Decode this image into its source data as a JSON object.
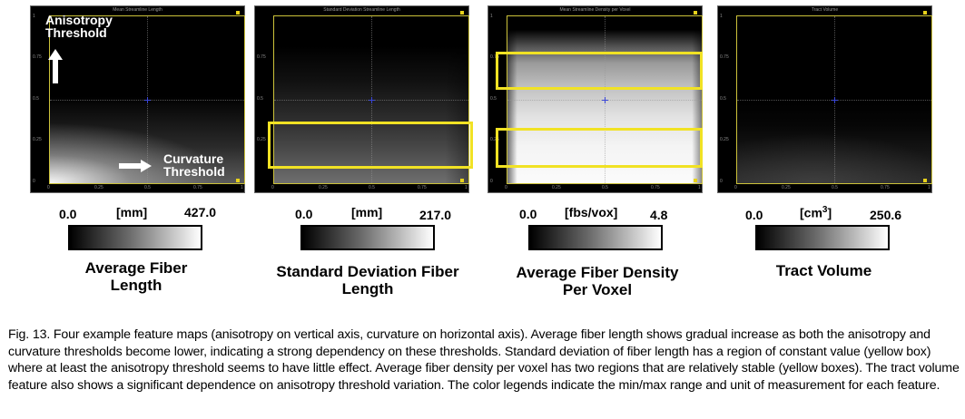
{
  "panels": [
    {
      "id": "panel-1",
      "title": "Mean Streamline Length",
      "yticks": [
        "1",
        "0.75",
        "0.5",
        "0.25",
        "0"
      ],
      "xticks": [
        "0",
        "0.25",
        "0.5",
        "0.75",
        "1"
      ],
      "annotations": {
        "anisotropy": "Anisotropy Threshold",
        "curvature": "Curvature Threshold"
      },
      "legend": {
        "min": "0.0",
        "unit": "[mm]",
        "max": "427.0"
      },
      "label": "Average Fiber Length"
    },
    {
      "id": "panel-2",
      "title": "Standard Deviation Streamline Length",
      "yticks": [
        "0.75",
        "0.5",
        "0.25"
      ],
      "xticks": [
        "0",
        "0.25",
        "0.5",
        "0.75",
        "1"
      ],
      "legend": {
        "min": "0.0",
        "unit": "[mm]",
        "max": "217.0"
      },
      "label": "Standard Deviation Fiber Length"
    },
    {
      "id": "panel-3",
      "title": "Mean Streamline Density per Voxel",
      "yticks": [
        "1",
        "0.75",
        "0.5",
        "0.25",
        "0"
      ],
      "xticks": [
        "0",
        "0.25",
        "0.5",
        "0.75",
        "1"
      ],
      "legend": {
        "min": "0.0",
        "unit": "[fbs/vox]",
        "max": "4.8"
      },
      "label": "Average Fiber Density Per Voxel"
    },
    {
      "id": "panel-4",
      "title": "Tract Volume",
      "yticks": [
        "1",
        "0.75",
        "0.5",
        "0.25",
        "0"
      ],
      "xticks": [
        "0",
        "0.25",
        "0.5",
        "0.75",
        "1"
      ],
      "legend": {
        "min": "0.0",
        "unit": "[cm",
        "unit_sup": "3",
        "unit_end": "]",
        "max": "250.6"
      },
      "label": "Tract Volume"
    }
  ],
  "caption": "Fig. 13. Four example feature maps (anisotropy on vertical axis, curvature on horizontal axis). Average fiber length shows gradual increase as both the anisotropy and curvature thresholds become lower, indicating a strong dependency on these thresholds. Standard deviation of fiber length has a region of constant value (yellow box) where at least the anisotropy threshold seems to have little effect. Average fiber density per voxel has two regions that are relatively stable (yellow boxes). The tract volume feature also shows a significant dependence on anisotropy threshold variation. The color legends indicate the min/max range and unit of measurement for each feature.",
  "colors": {
    "box": "#f1e224",
    "crosshair": "#3a46d6",
    "frame": "#ccc23a"
  }
}
